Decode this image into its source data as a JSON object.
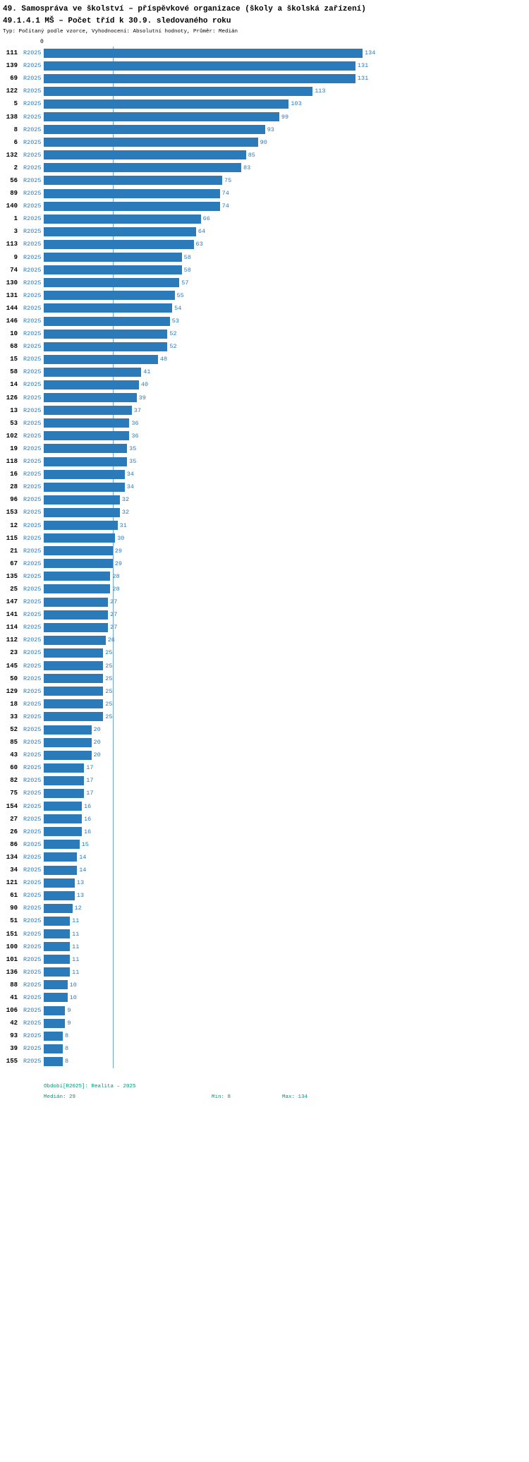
{
  "header": {
    "title_line1": "49. Samospráva ve školství – příspěvkové organizace (školy a školská zařízení)",
    "title_line2": "49.1.4.1 MŠ – Počet tříd k 30.9. sledovaného roku",
    "meta": "Typ: Počítaný podle vzorce, Vyhodnocení: Absolutní hodnoty, Průměr: Medián"
  },
  "chart_data": {
    "type": "bar",
    "orientation": "horizontal",
    "period_label": "R2025",
    "axis_zero_label": "0",
    "xlim": [
      0,
      140
    ],
    "median_value": 29,
    "min_value": 8,
    "max_value": 134,
    "colors": {
      "bar": "#2b7bba",
      "value_label": "#2b7bba",
      "median_line": "#6aa7d6",
      "footer_text": "#009577"
    },
    "rows": [
      {
        "id": "111",
        "value": 134
      },
      {
        "id": "139",
        "value": 131
      },
      {
        "id": "69",
        "value": 131
      },
      {
        "id": "122",
        "value": 113
      },
      {
        "id": "5",
        "value": 103
      },
      {
        "id": "138",
        "value": 99
      },
      {
        "id": "8",
        "value": 93
      },
      {
        "id": "6",
        "value": 90
      },
      {
        "id": "132",
        "value": 85
      },
      {
        "id": "2",
        "value": 83
      },
      {
        "id": "56",
        "value": 75
      },
      {
        "id": "89",
        "value": 74
      },
      {
        "id": "140",
        "value": 74
      },
      {
        "id": "1",
        "value": 66
      },
      {
        "id": "3",
        "value": 64
      },
      {
        "id": "113",
        "value": 63
      },
      {
        "id": "9",
        "value": 58
      },
      {
        "id": "74",
        "value": 58
      },
      {
        "id": "130",
        "value": 57
      },
      {
        "id": "131",
        "value": 55
      },
      {
        "id": "144",
        "value": 54
      },
      {
        "id": "146",
        "value": 53
      },
      {
        "id": "10",
        "value": 52
      },
      {
        "id": "68",
        "value": 52
      },
      {
        "id": "15",
        "value": 48
      },
      {
        "id": "58",
        "value": 41
      },
      {
        "id": "14",
        "value": 40
      },
      {
        "id": "126",
        "value": 39
      },
      {
        "id": "13",
        "value": 37
      },
      {
        "id": "53",
        "value": 36
      },
      {
        "id": "102",
        "value": 36
      },
      {
        "id": "19",
        "value": 35
      },
      {
        "id": "118",
        "value": 35
      },
      {
        "id": "16",
        "value": 34
      },
      {
        "id": "28",
        "value": 34
      },
      {
        "id": "96",
        "value": 32
      },
      {
        "id": "153",
        "value": 32
      },
      {
        "id": "12",
        "value": 31
      },
      {
        "id": "115",
        "value": 30
      },
      {
        "id": "21",
        "value": 29
      },
      {
        "id": "67",
        "value": 29
      },
      {
        "id": "135",
        "value": 28
      },
      {
        "id": "25",
        "value": 28
      },
      {
        "id": "147",
        "value": 27
      },
      {
        "id": "141",
        "value": 27
      },
      {
        "id": "114",
        "value": 27
      },
      {
        "id": "112",
        "value": 26
      },
      {
        "id": "23",
        "value": 25
      },
      {
        "id": "145",
        "value": 25
      },
      {
        "id": "50",
        "value": 25
      },
      {
        "id": "129",
        "value": 25
      },
      {
        "id": "18",
        "value": 25
      },
      {
        "id": "33",
        "value": 25
      },
      {
        "id": "52",
        "value": 20
      },
      {
        "id": "85",
        "value": 20
      },
      {
        "id": "43",
        "value": 20
      },
      {
        "id": "60",
        "value": 17
      },
      {
        "id": "82",
        "value": 17
      },
      {
        "id": "75",
        "value": 17
      },
      {
        "id": "154",
        "value": 16
      },
      {
        "id": "27",
        "value": 16
      },
      {
        "id": "26",
        "value": 16
      },
      {
        "id": "86",
        "value": 15
      },
      {
        "id": "134",
        "value": 14
      },
      {
        "id": "34",
        "value": 14
      },
      {
        "id": "121",
        "value": 13
      },
      {
        "id": "61",
        "value": 13
      },
      {
        "id": "90",
        "value": 12
      },
      {
        "id": "51",
        "value": 11
      },
      {
        "id": "151",
        "value": 11
      },
      {
        "id": "100",
        "value": 11
      },
      {
        "id": "101",
        "value": 11
      },
      {
        "id": "136",
        "value": 11
      },
      {
        "id": "88",
        "value": 10
      },
      {
        "id": "41",
        "value": 10
      },
      {
        "id": "106",
        "value": 9
      },
      {
        "id": "42",
        "value": 9
      },
      {
        "id": "93",
        "value": 8
      },
      {
        "id": "39",
        "value": 8
      },
      {
        "id": "155",
        "value": 8
      }
    ]
  },
  "footer": {
    "period_label": "Období[R2025]: Realita – 2025",
    "median_label": "Medián: 29",
    "min_label": "Min: 8",
    "max_label": "Max: 134"
  }
}
